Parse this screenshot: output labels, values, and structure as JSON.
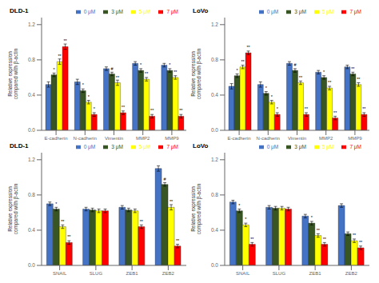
{
  "chart_data": [
    {
      "type": "bar",
      "title": "DLD-1",
      "ylabel": "Relative expression\ncompared with β-actin",
      "categories": [
        "E-cadherin",
        "N-cadherin",
        "Vimentin",
        "MMP2",
        "MMP9"
      ],
      "series": [
        {
          "name": "0 μM",
          "color": "#4472C4",
          "values": [
            0.52,
            0.55,
            0.7,
            0.76,
            0.74
          ],
          "errors": [
            0.03,
            0.03,
            0.02,
            0.02,
            0.02
          ],
          "annotations": [
            null,
            null,
            null,
            null,
            null
          ]
        },
        {
          "name": "3 μM",
          "color": "#375623",
          "values": [
            0.63,
            0.45,
            0.64,
            0.68,
            0.68
          ],
          "errors": [
            0.02,
            0.02,
            0.02,
            0.02,
            0.02
          ],
          "annotations": [
            "*",
            "*",
            "#",
            "*",
            "*"
          ]
        },
        {
          "name": "5 μM",
          "color": "#FFFF00",
          "values": [
            0.78,
            0.32,
            0.54,
            0.58,
            0.6
          ],
          "errors": [
            0.03,
            0.02,
            0.03,
            0.02,
            0.02
          ],
          "annotations": [
            "**",
            "*",
            "**",
            "**",
            "**"
          ]
        },
        {
          "name": "7 μM",
          "color": "#FF0000",
          "values": [
            0.95,
            0.18,
            0.2,
            0.16,
            0.16
          ],
          "errors": [
            0.03,
            0.02,
            0.02,
            0.02,
            0.02
          ],
          "annotations": [
            "**",
            "*",
            "**",
            "**",
            "**"
          ]
        }
      ],
      "ylim": [
        0,
        1.28
      ],
      "yticks": [
        {
          "value": 0,
          "label": "0.0"
        },
        0.4,
        0.8,
        1.2
      ],
      "legend": "upper right",
      "grid": false
    },
    {
      "type": "bar",
      "title": "LoVo",
      "ylabel": "Relative expression\ncompared with β-actin",
      "categories": [
        "E-cadherin",
        "N-cadherin",
        "Vimentin",
        "MMP2",
        "MMP9"
      ],
      "series": [
        {
          "name": "0 μM",
          "color": "#4472C4",
          "values": [
            0.5,
            0.52,
            0.76,
            0.66,
            0.72
          ],
          "errors": [
            0.03,
            0.03,
            0.02,
            0.02,
            0.02
          ],
          "annotations": [
            null,
            null,
            null,
            null,
            null
          ]
        },
        {
          "name": "3 μM",
          "color": "#375623",
          "values": [
            0.62,
            0.42,
            0.68,
            0.6,
            0.64
          ],
          "errors": [
            0.02,
            0.02,
            0.02,
            0.02,
            0.02
          ],
          "annotations": [
            "*",
            "*",
            "#",
            "*",
            "**"
          ]
        },
        {
          "name": "5 μM",
          "color": "#FFFF00",
          "values": [
            0.72,
            0.32,
            0.54,
            0.48,
            0.52
          ],
          "errors": [
            0.02,
            0.02,
            0.02,
            0.02,
            0.02
          ],
          "annotations": [
            "**",
            "*",
            "**",
            "**",
            "**"
          ]
        },
        {
          "name": "7 μM",
          "color": "#FF0000",
          "values": [
            0.88,
            0.18,
            0.18,
            0.14,
            0.18
          ],
          "errors": [
            0.02,
            0.02,
            0.02,
            0.02,
            0.02
          ],
          "annotations": [
            "**",
            "*",
            "**",
            "**",
            "**"
          ]
        }
      ],
      "ylim": [
        0,
        1.28
      ],
      "yticks": [
        {
          "value": 0,
          "label": "0.0"
        },
        0.4,
        0.8,
        1.2
      ],
      "legend": "upper right",
      "grid": false
    },
    {
      "type": "bar",
      "title": "DLD-1",
      "ylabel": "Relative expression\ncompared with β-actin",
      "categories": [
        "SNAIL",
        "SLUG",
        "ZEB1",
        "ZEB2"
      ],
      "series": [
        {
          "name": "0 μM",
          "color": "#4472C4",
          "values": [
            0.7,
            0.64,
            0.66,
            1.1
          ],
          "errors": [
            0.02,
            0.02,
            0.02,
            0.03
          ],
          "annotations": [
            null,
            null,
            null,
            null
          ]
        },
        {
          "name": "3 μM",
          "color": "#375623",
          "values": [
            0.64,
            0.63,
            0.63,
            0.92
          ],
          "errors": [
            0.02,
            0.02,
            0.02,
            0.02
          ],
          "annotations": [
            "*",
            null,
            null,
            "#"
          ]
        },
        {
          "name": "5 μM",
          "color": "#FFFF00",
          "values": [
            0.44,
            0.62,
            0.62,
            0.66
          ],
          "errors": [
            0.02,
            0.02,
            0.02,
            0.03
          ],
          "annotations": [
            "**",
            null,
            null,
            "**"
          ]
        },
        {
          "name": "7 μM",
          "color": "#FF0000",
          "values": [
            0.26,
            0.62,
            0.44,
            0.22
          ],
          "errors": [
            0.02,
            0.02,
            0.02,
            0.02
          ],
          "annotations": [
            "**",
            null,
            "**",
            "**"
          ]
        }
      ],
      "ylim": [
        0,
        1.28
      ],
      "yticks": [
        {
          "value": 0,
          "label": "0.0"
        },
        0.4,
        0.8,
        1.2
      ],
      "legend": "upper right",
      "grid": false
    },
    {
      "type": "bar",
      "title": "LoVo",
      "ylabel": "Relative expression\ncompared with β-actin",
      "categories": [
        "SNAIL",
        "SLUG",
        "ZEB1",
        "ZEB2"
      ],
      "series": [
        {
          "name": "0 μM",
          "color": "#4472C4",
          "values": [
            0.72,
            0.66,
            0.56,
            0.68
          ],
          "errors": [
            0.02,
            0.02,
            0.02,
            0.02
          ],
          "annotations": [
            null,
            null,
            null,
            null
          ]
        },
        {
          "name": "3 μM",
          "color": "#375623",
          "values": [
            0.62,
            0.65,
            0.48,
            0.36
          ],
          "errors": [
            0.02,
            0.02,
            0.02,
            0.02
          ],
          "annotations": [
            "*",
            null,
            "*",
            null
          ]
        },
        {
          "name": "5 μM",
          "color": "#FFFF00",
          "values": [
            0.46,
            0.65,
            0.34,
            0.28
          ],
          "errors": [
            0.02,
            0.02,
            0.02,
            0.02
          ],
          "annotations": [
            "*",
            null,
            "**",
            "**"
          ]
        },
        {
          "name": "7 μM",
          "color": "#FF0000",
          "values": [
            0.24,
            0.64,
            0.24,
            0.2
          ],
          "errors": [
            0.02,
            0.02,
            0.02,
            0.02
          ],
          "annotations": [
            "**",
            null,
            "**",
            "**"
          ]
        }
      ],
      "ylim": [
        0,
        1.28
      ],
      "yticks": [
        {
          "value": 0,
          "label": "0.0"
        },
        0.4,
        0.8,
        1.2
      ],
      "legend": "upper right",
      "grid": false
    }
  ]
}
